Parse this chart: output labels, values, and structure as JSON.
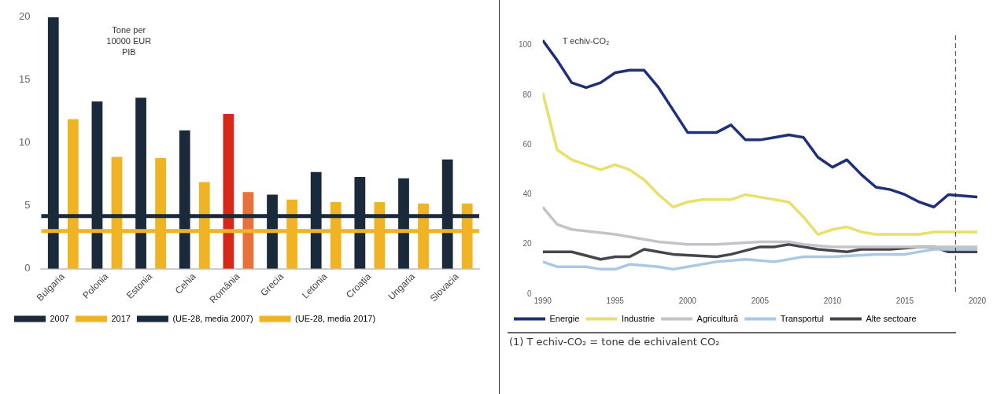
{
  "chart_data": [
    {
      "type": "bar",
      "categories": [
        "Bulgaria",
        "Polonia",
        "Estonia",
        "Cehia",
        "România",
        "Grecia",
        "Letonia",
        "Croația",
        "Ungaria",
        "Slovacia"
      ],
      "series": [
        {
          "name": "2007",
          "color": "#1b2a3a",
          "colors": [
            "#1b2a3a",
            "#1b2a3a",
            "#1b2a3a",
            "#1b2a3a",
            "#d62718",
            "#1b2a3a",
            "#1b2a3a",
            "#1b2a3a",
            "#1b2a3a",
            "#1b2a3a"
          ],
          "values": [
            20,
            13.3,
            13.6,
            11,
            12.3,
            5.9,
            7.7,
            7.3,
            7.2,
            8.7
          ]
        },
        {
          "name": "2017",
          "color": "#f0b323",
          "colors": [
            "#f0b323",
            "#f0b323",
            "#f0b323",
            "#f0b323",
            "#e8703a",
            "#f0b323",
            "#f0b323",
            "#f0b323",
            "#f0b323",
            "#f0b323"
          ],
          "values": [
            11.9,
            8.9,
            8.8,
            6.9,
            6.1,
            5.5,
            5.3,
            5.3,
            5.2,
            5.2
          ]
        }
      ],
      "ylim": [
        0,
        20
      ],
      "yticks": [
        0,
        5,
        10,
        15,
        20
      ],
      "grid": false,
      "legend": "bottom",
      "ref_lines": [
        {
          "axis": "y",
          "value": 4.2,
          "label": "(UE-28, media 2007)",
          "color": "#1b2a3a"
        },
        {
          "axis": "y",
          "value": 3,
          "label": "(UE-28, media 2017)",
          "color": "#f0b323"
        }
      ],
      "annotations": [
        "Tone per\n10000 EUR\nPIB"
      ]
    },
    {
      "type": "line",
      "ylabel": "T echiv-CO₂",
      "series": [
        {
          "name": "Energie",
          "color": "#1f2f7a",
          "x": [
            1990,
            1991,
            1992,
            1993,
            1994,
            1995,
            1996,
            1997,
            1998,
            1999,
            2000,
            2001,
            2002,
            2003,
            2004,
            2005,
            2006,
            2007,
            2008,
            2009,
            2010,
            2011,
            2012,
            2013,
            2014,
            2015,
            2016,
            2017,
            2018,
            2020
          ],
          "values": [
            102,
            94,
            85,
            83,
            85,
            89,
            90,
            90,
            83,
            74,
            65,
            65,
            65,
            68,
            62,
            62,
            63,
            64,
            63,
            55,
            51,
            54,
            48,
            43,
            42,
            40,
            37,
            35,
            40,
            39
          ]
        },
        {
          "name": "Industrie",
          "color": "#e8e06a",
          "x": [
            1990,
            1991,
            1992,
            1993,
            1994,
            1995,
            1996,
            1997,
            1998,
            1999,
            2000,
            2001,
            2002,
            2003,
            2004,
            2005,
            2006,
            2007,
            2008,
            2009,
            2010,
            2011,
            2012,
            2013,
            2014,
            2015,
            2016,
            2017,
            2018,
            2019,
            2020
          ],
          "values": [
            81,
            58,
            54,
            52,
            50,
            52,
            50,
            46,
            40,
            35,
            37,
            38,
            38,
            38,
            40,
            39,
            38,
            37,
            31,
            24,
            26,
            27,
            25,
            24,
            24,
            24,
            24,
            25,
            25,
            25,
            25
          ]
        },
        {
          "name": "Agricultură",
          "color": "#c4c4c8",
          "x": [
            1990,
            1991,
            1992,
            1995,
            1998,
            2000,
            2002,
            2005,
            2007,
            2008,
            2010,
            2012,
            2015,
            2018,
            2020
          ],
          "values": [
            35,
            28,
            26,
            24,
            21,
            20,
            20,
            21,
            21,
            20,
            19,
            19,
            19,
            19,
            19
          ]
        },
        {
          "name": "Transportul",
          "color": "#a9c8e8",
          "x": [
            1990,
            1991,
            1993,
            1994,
            1995,
            1996,
            1998,
            1999,
            2000,
            2002,
            2004,
            2006,
            2008,
            2010,
            2013,
            2015,
            2017,
            2020
          ],
          "values": [
            13,
            11,
            11,
            10,
            10,
            12,
            11,
            10,
            11,
            13,
            14,
            13,
            15,
            15,
            16,
            16,
            18,
            18
          ]
        },
        {
          "name": "Alte sectoare",
          "color": "#45454e",
          "x": [
            1990,
            1992,
            1994,
            1995,
            1996,
            1997,
            1998,
            1999,
            2002,
            2003,
            2005,
            2006,
            2007,
            2009,
            2011,
            2012,
            2014,
            2016,
            2017,
            2018,
            2020
          ],
          "values": [
            17,
            17,
            14,
            15,
            15,
            18,
            17,
            16,
            15,
            16,
            19,
            19,
            20,
            18,
            17,
            18,
            18,
            19,
            19,
            17,
            17
          ]
        }
      ],
      "xlim": [
        1990,
        2020
      ],
      "xticks": [
        1990,
        1995,
        2000,
        2005,
        2010,
        2015,
        2020
      ],
      "ylim": [
        0,
        104
      ],
      "yticks": [
        0,
        20,
        40,
        60,
        80,
        100
      ],
      "grid": false,
      "legend": "bottom",
      "ref_lines": [
        {
          "axis": "x",
          "value": 2018.5,
          "color": "#333333",
          "line_style": "dashed"
        }
      ],
      "annotations": [
        "(1) T echiv-CO₂ = tone de echivalent CO₂"
      ]
    }
  ]
}
